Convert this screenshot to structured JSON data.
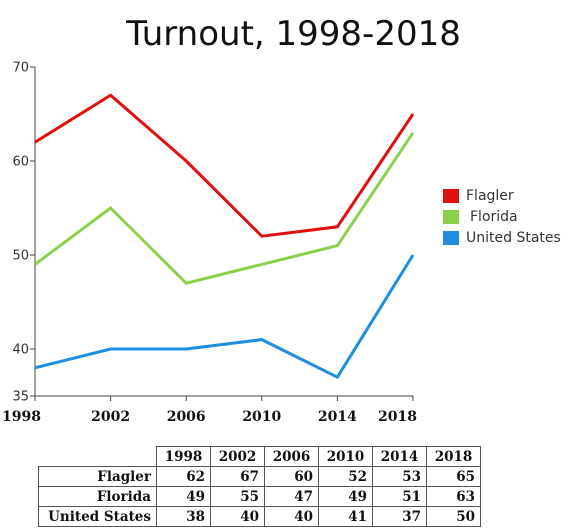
{
  "chart_data": {
    "type": "line",
    "title": "Turnout, 1998-2018",
    "xlabel": "",
    "ylabel": "",
    "x": [
      "1998",
      "2002",
      "2006",
      "2010",
      "2014",
      "2018"
    ],
    "ylim": [
      35,
      70
    ],
    "yticks": [
      "35",
      "40",
      "50",
      "60",
      "70"
    ],
    "grid": false,
    "legend_position": "right",
    "series": [
      {
        "name": "Flagler",
        "color": "#e01010",
        "values": [
          62,
          67,
          60,
          52,
          53,
          65
        ]
      },
      {
        "name": "Florida",
        "color": "#8cd04a",
        "values": [
          49,
          55,
          47,
          49,
          51,
          63
        ]
      },
      {
        "name": "United States",
        "color": "#1e8fe0",
        "values": [
          38,
          40,
          40,
          41,
          37,
          50
        ]
      }
    ]
  },
  "table": {
    "headers": [
      "1998",
      "2002",
      "2006",
      "2010",
      "2014",
      "2018"
    ],
    "rows": [
      {
        "label": "Flagler",
        "values": [
          "62",
          "67",
          "60",
          "52",
          "53",
          "65"
        ]
      },
      {
        "label": "Florida",
        "values": [
          "49",
          "55",
          "47",
          "49",
          "51",
          "63"
        ]
      },
      {
        "label": "United States",
        "values": [
          "38",
          "40",
          "40",
          "41",
          "37",
          "50"
        ]
      }
    ]
  }
}
